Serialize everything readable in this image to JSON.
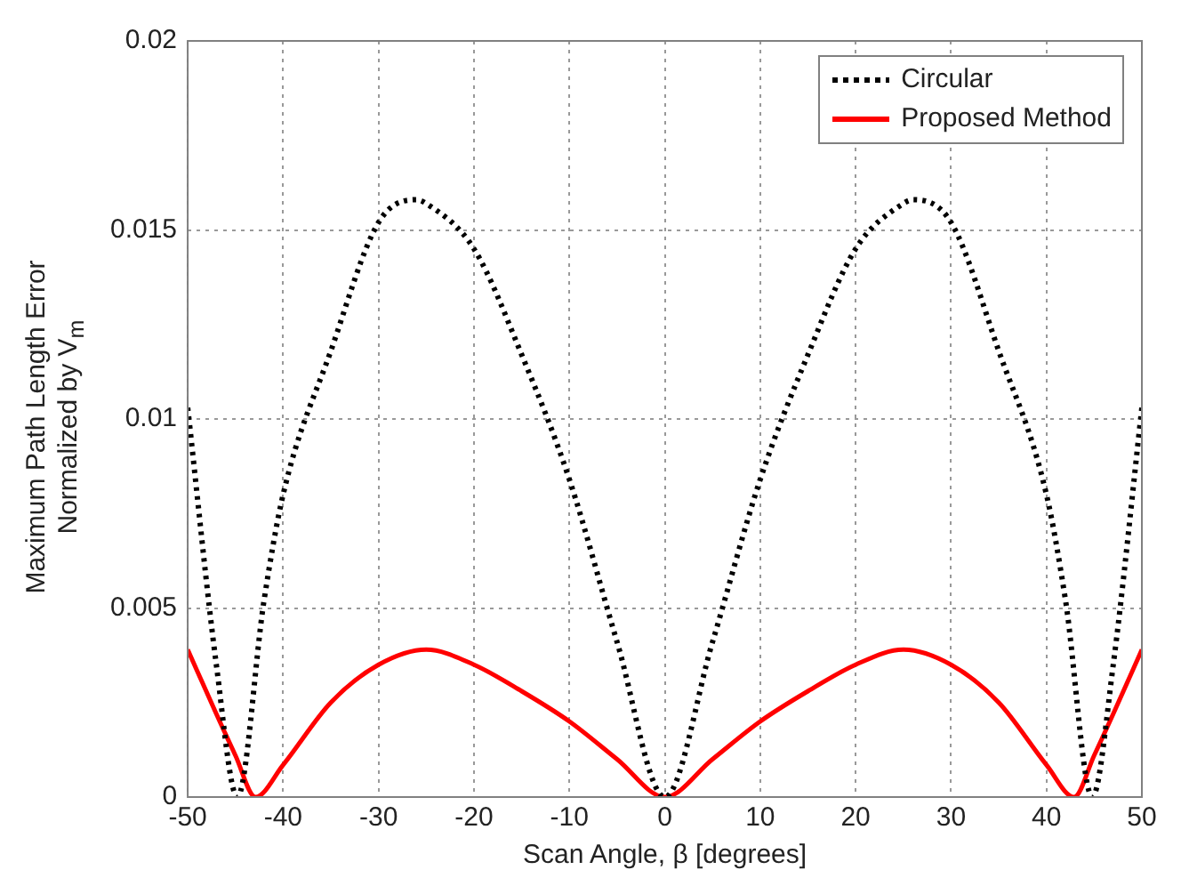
{
  "chart_data": {
    "type": "line",
    "xlabel": "Scan Angle, β [degrees]",
    "ylabel": "Maximum Path Length Error\nNormalized by V$_{m}$",
    "x": [
      -50,
      -47,
      -44.8,
      -42,
      -40,
      -35,
      -30,
      -26,
      -25,
      -20,
      -15,
      -10,
      -5,
      0,
      5,
      10,
      15,
      20,
      25,
      26,
      30,
      35,
      40,
      42,
      44.8,
      47,
      50
    ],
    "series": [
      {
        "name": "Circular",
        "color": "#000000",
        "line_style": "dotted",
        "values": [
          0.0103,
          0.0035,
          0,
          0.0052,
          0.008,
          0.0118,
          0.0152,
          0.0158,
          0.0157,
          0.0145,
          0.0117,
          0.0084,
          0.0041,
          0,
          0.0041,
          0.0084,
          0.0117,
          0.0145,
          0.0157,
          0.0158,
          0.0152,
          0.0118,
          0.008,
          0.0052,
          0,
          0.0035,
          0.0103
        ]
      },
      {
        "name": "Proposed Method",
        "color": "#ff0000",
        "line_style": "solid",
        "x": [
          -50,
          -47,
          -45,
          -42.9,
          -40,
          -35,
          -30,
          -25,
          -20,
          -15,
          -10,
          -5,
          0,
          5,
          10,
          15,
          20,
          25,
          30,
          35,
          40,
          42.9,
          45,
          47,
          50
        ],
        "values": [
          0.0039,
          0.0022,
          0.0011,
          0,
          0.00085,
          0.0025,
          0.0035,
          0.0039,
          0.0035,
          0.0028,
          0.002,
          0.001,
          0,
          0.001,
          0.002,
          0.0028,
          0.0035,
          0.0039,
          0.0035,
          0.0025,
          0.00085,
          0,
          0.0011,
          0.0022,
          0.0039
        ]
      }
    ],
    "xlim": [
      -50,
      50
    ],
    "xticks": [
      -50,
      -40,
      -30,
      -20,
      -10,
      0,
      10,
      20,
      30,
      40,
      50
    ],
    "ylim": [
      0,
      0.02
    ],
    "yticks": [
      0,
      0.005,
      0.01,
      0.015,
      0.02
    ],
    "grid": true,
    "legend": "top right",
    "marker": "none"
  }
}
